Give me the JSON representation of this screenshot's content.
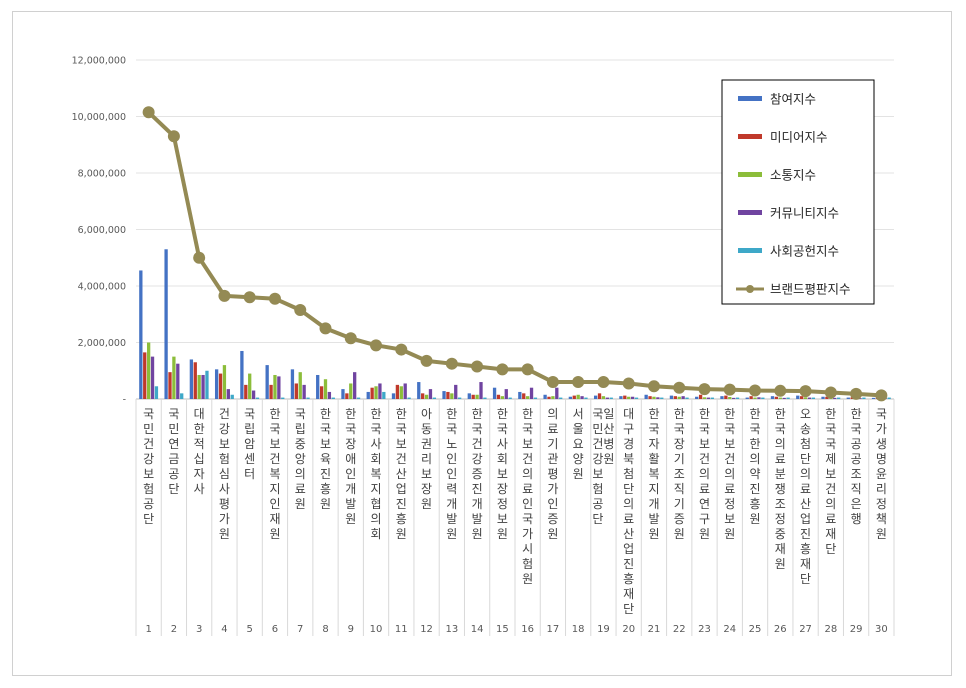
{
  "chart_data": {
    "type": "bar",
    "title": "",
    "xlabel": "",
    "ylabel": "",
    "ylim": [
      0,
      12000000
    ],
    "yticks": [
      0,
      2000000,
      4000000,
      6000000,
      8000000,
      10000000,
      12000000
    ],
    "ytick_labels": [
      "-",
      "2,000,000",
      "4,000,000",
      "6,000,000",
      "8,000,000",
      "10,000,000",
      "12,000,000"
    ],
    "grid": true,
    "legend_position": "top-right",
    "categories": [
      "국민건강보험공단",
      "국민연금공단",
      "대한적십자사",
      "건강보험심사평가원",
      "국립암센터",
      "한국보건복지인재원",
      "국립중앙의료원",
      "한국보육진흥원",
      "한국장애인개발원",
      "한국사회복지협의회",
      "한국보건산업진흥원",
      "아동권리보장원",
      "한국노인인력개발원",
      "한국건강증진개발원",
      "한국사회보장정보원",
      "한국보건의료인국가시험원",
      "의료기관평가인증원",
      "서울요양원",
      "국민건강보험공단 일산병원",
      "대구경북첨단의료산업진흥재단",
      "한국자활복지개발원",
      "한국장기조직기증원",
      "한국보건의료연구원",
      "한국보건의료정보원",
      "한국한의약진흥원",
      "한국의료분쟁조정중재원",
      "오송첨단의료산업진흥재단",
      "한국국제보건의료재단",
      "한국공공조직은행",
      "국가생명윤리정책원"
    ],
    "ranks": [
      "1",
      "2",
      "3",
      "4",
      "5",
      "6",
      "7",
      "8",
      "9",
      "10",
      "11",
      "12",
      "13",
      "14",
      "15",
      "16",
      "17",
      "18",
      "19",
      "20",
      "21",
      "22",
      "23",
      "24",
      "25",
      "26",
      "27",
      "28",
      "29",
      "30"
    ],
    "series": [
      {
        "name": "참여지수",
        "kind": "bar",
        "color": "#4472c4",
        "values": [
          4550000,
          5300000,
          1400000,
          1050000,
          1700000,
          1200000,
          1050000,
          850000,
          350000,
          250000,
          200000,
          600000,
          280000,
          200000,
          400000,
          250000,
          150000,
          80000,
          120000,
          100000,
          150000,
          120000,
          80000,
          100000,
          50000,
          100000,
          120000,
          80000,
          50000,
          40000
        ]
      },
      {
        "name": "미디어지수",
        "kind": "bar",
        "color": "#c0392b",
        "values": [
          1650000,
          950000,
          1300000,
          900000,
          500000,
          500000,
          550000,
          450000,
          200000,
          400000,
          500000,
          200000,
          250000,
          150000,
          150000,
          200000,
          80000,
          120000,
          200000,
          120000,
          100000,
          100000,
          150000,
          120000,
          100000,
          80000,
          100000,
          80000,
          60000,
          60000
        ]
      },
      {
        "name": "소통지수",
        "kind": "bar",
        "color": "#8cbd3a",
        "values": [
          2000000,
          1500000,
          850000,
          1200000,
          900000,
          850000,
          950000,
          700000,
          550000,
          450000,
          450000,
          150000,
          200000,
          150000,
          100000,
          100000,
          100000,
          150000,
          100000,
          80000,
          80000,
          80000,
          60000,
          70000,
          50000,
          50000,
          60000,
          50000,
          40000,
          30000
        ]
      },
      {
        "name": "커뮤니티지수",
        "kind": "bar",
        "color": "#7044a0",
        "values": [
          1500000,
          1250000,
          850000,
          350000,
          300000,
          800000,
          500000,
          250000,
          950000,
          550000,
          550000,
          350000,
          500000,
          600000,
          350000,
          400000,
          400000,
          100000,
          50000,
          80000,
          60000,
          100000,
          50000,
          40000,
          60000,
          40000,
          50000,
          40000,
          30000,
          30000
        ]
      },
      {
        "name": "사회공헌지수",
        "kind": "bar",
        "color": "#3ea8c8",
        "values": [
          450000,
          200000,
          1000000,
          150000,
          50000,
          50000,
          50000,
          50000,
          50000,
          250000,
          50000,
          50000,
          50000,
          50000,
          50000,
          50000,
          50000,
          50000,
          50000,
          50000,
          50000,
          50000,
          50000,
          50000,
          50000,
          50000,
          50000,
          50000,
          50000,
          50000
        ]
      },
      {
        "name": "브랜드평판지수",
        "kind": "line",
        "color": "#948a54",
        "values": [
          10150000,
          9300000,
          5000000,
          3650000,
          3600000,
          3550000,
          3150000,
          2500000,
          2150000,
          1900000,
          1750000,
          1350000,
          1250000,
          1150000,
          1050000,
          1050000,
          600000,
          600000,
          600000,
          550000,
          450000,
          400000,
          350000,
          330000,
          300000,
          290000,
          280000,
          230000,
          180000,
          130000
        ]
      }
    ]
  }
}
